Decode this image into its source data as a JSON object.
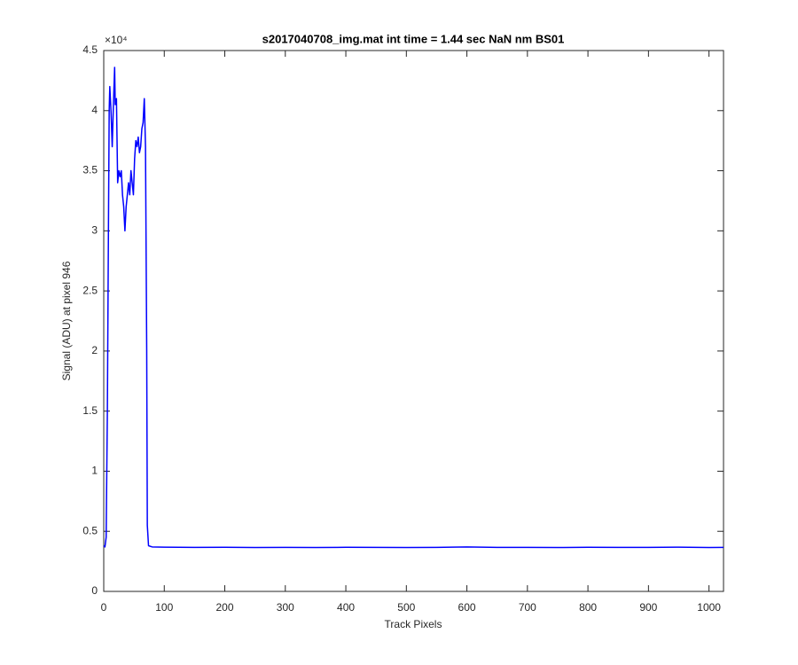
{
  "chart_data": {
    "type": "line",
    "title": "s2017040708_img.mat int time = 1.44 sec  NaN nm BS01",
    "x_label": "Track Pixels",
    "y_label": "Signal (ADU) at pixel 946",
    "y_multiplier": "×10⁴",
    "x": [
      0,
      2,
      4,
      6,
      8,
      9,
      10,
      12,
      14,
      16,
      18,
      19,
      21,
      23,
      25,
      27,
      29,
      31,
      33,
      35,
      37,
      39,
      41,
      43,
      45,
      47,
      49,
      51,
      53,
      55,
      57,
      59,
      61,
      63,
      65,
      67,
      69,
      71,
      72,
      74,
      80,
      100,
      150,
      200,
      250,
      300,
      350,
      400,
      450,
      500,
      550,
      600,
      650,
      700,
      750,
      800,
      850,
      900,
      950,
      1000,
      1024
    ],
    "series": [
      {
        "name": "signal",
        "color": "#0000ff",
        "values": [
          0.38,
          0.37,
          0.45,
          1.5,
          3.2,
          4.0,
          4.2,
          4.0,
          3.7,
          4.05,
          4.36,
          4.05,
          4.1,
          3.4,
          3.5,
          3.45,
          3.5,
          3.3,
          3.2,
          3.0,
          3.2,
          3.3,
          3.4,
          3.3,
          3.5,
          3.4,
          3.3,
          3.6,
          3.75,
          3.7,
          3.78,
          3.65,
          3.7,
          3.85,
          3.9,
          4.1,
          3.7,
          2.0,
          0.55,
          0.38,
          0.37,
          0.368,
          0.366,
          0.367,
          0.365,
          0.366,
          0.365,
          0.367,
          0.366,
          0.365,
          0.366,
          0.37,
          0.366,
          0.366,
          0.365,
          0.367,
          0.366,
          0.366,
          0.368,
          0.365,
          0.366
        ]
      }
    ],
    "xlim": [
      0,
      1024
    ],
    "xticks": [
      0,
      100,
      200,
      300,
      400,
      500,
      600,
      700,
      800,
      900,
      1000
    ],
    "ylim": [
      0,
      4.5
    ],
    "yticks": [
      0,
      0.5,
      1,
      1.5,
      2,
      2.5,
      3,
      3.5,
      4,
      4.5
    ],
    "grid": false
  }
}
